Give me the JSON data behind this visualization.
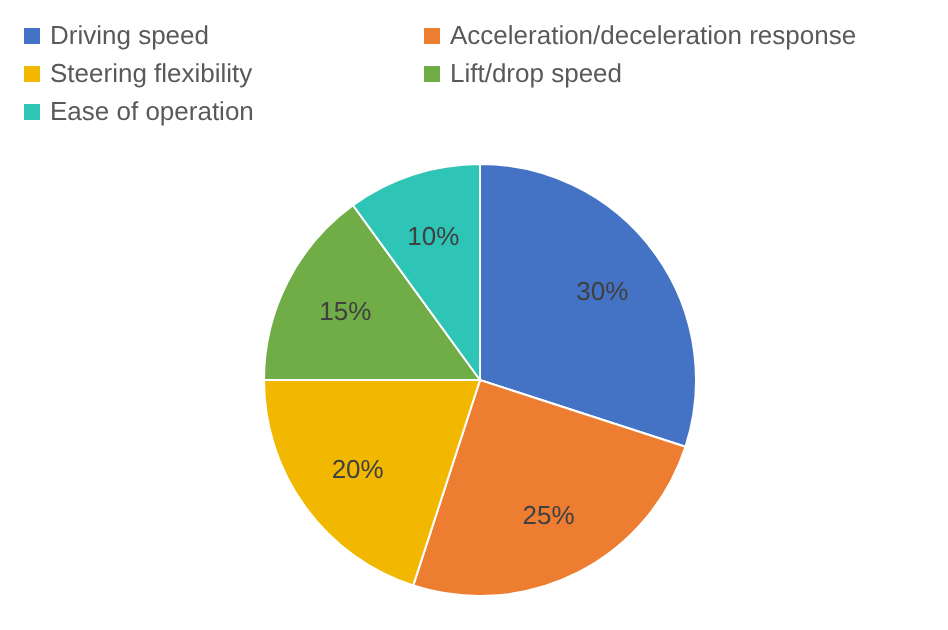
{
  "chart_data": {
    "type": "pie",
    "categories": [
      "Driving speed",
      "Acceleration/deceleration response",
      "Steering flexibility",
      "Lift/drop speed",
      "Ease of operation"
    ],
    "values": [
      30,
      25,
      20,
      15,
      10
    ],
    "colors": [
      "#4472c4",
      "#ed7d31",
      "#f2b800",
      "#70ad47",
      "#2ec4b6"
    ],
    "value_labels": [
      "30%",
      "25%",
      "20%",
      "15%",
      "10%"
    ],
    "legend": "top"
  }
}
